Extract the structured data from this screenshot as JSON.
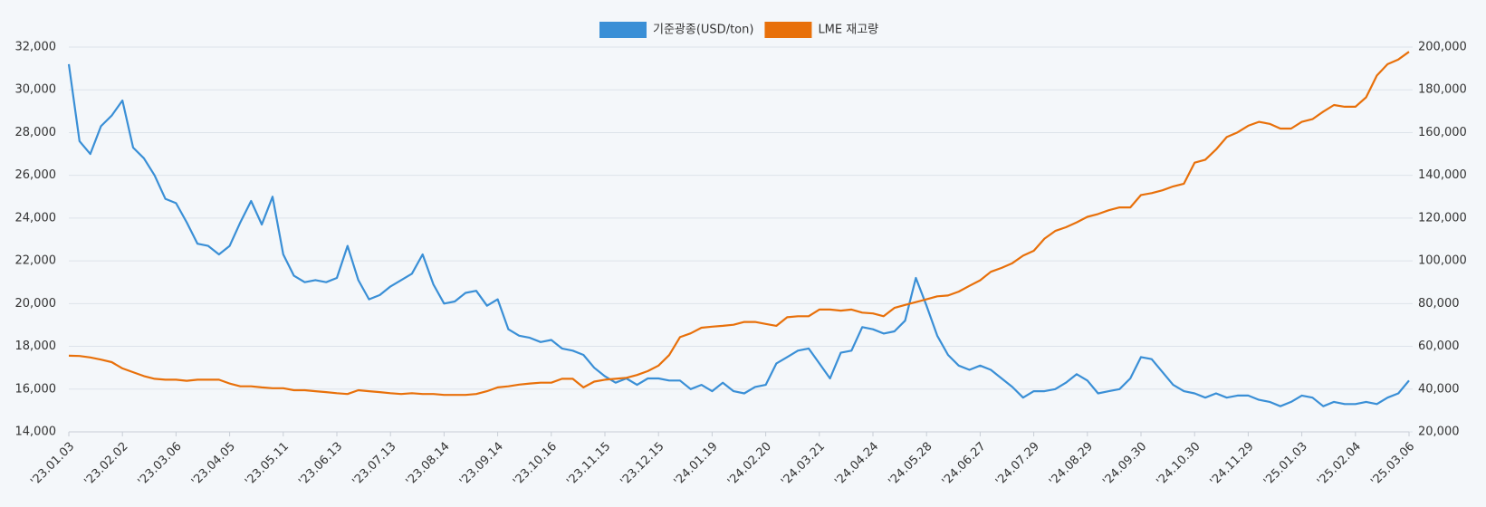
{
  "chart_data": {
    "type": "line",
    "categories": [
      "'23.01.03",
      null,
      null,
      null,
      null,
      "'23.02.02",
      null,
      null,
      null,
      null,
      "'23.03.06",
      null,
      null,
      null,
      null,
      "'23.04.05",
      null,
      null,
      null,
      null,
      "'23.05.11",
      null,
      null,
      null,
      null,
      "'23.06.13",
      null,
      null,
      null,
      null,
      "'23.07.13",
      null,
      null,
      null,
      null,
      "'23.08.14",
      null,
      null,
      null,
      null,
      "'23.09.14",
      null,
      null,
      null,
      null,
      "'23.10.16",
      null,
      null,
      null,
      null,
      "'23.11.15",
      null,
      null,
      null,
      null,
      "'23.12.15",
      null,
      null,
      null,
      null,
      "'24.01.19",
      null,
      null,
      null,
      null,
      "'24.02.20",
      null,
      null,
      null,
      null,
      "'24.03.21",
      null,
      null,
      null,
      null,
      "'24.04.24",
      null,
      null,
      null,
      null,
      "'24.05.28",
      null,
      null,
      null,
      null,
      "'24.06.27",
      null,
      null,
      null,
      null,
      "'24.07.29",
      null,
      null,
      null,
      null,
      "'24.08.29",
      null,
      null,
      null,
      null,
      "'24.09.30",
      null,
      null,
      null,
      null,
      "'24.10.30",
      null,
      null,
      null,
      null,
      "'24.11.29",
      null,
      null,
      null,
      null,
      "'25.01.03",
      null,
      null,
      null,
      null,
      "'25.02.04",
      null,
      null,
      null,
      null,
      "'25.03.06"
    ],
    "series": [
      {
        "name": "기준광종(USD/ton)",
        "color": "#3a8fd6",
        "axis": "y",
        "values": [
          31200,
          27600,
          27000,
          28300,
          28800,
          29500,
          27300,
          26800,
          26000,
          24900,
          24700,
          23800,
          22800,
          22700,
          22300,
          22700,
          23800,
          24800,
          23700,
          25000,
          22300,
          21300,
          21000,
          21100,
          21000,
          21200,
          22700,
          21100,
          20200,
          20400,
          20800,
          21100,
          21400,
          22300,
          20900,
          20000,
          20100,
          20500,
          20600,
          19900,
          20200,
          18800,
          18500,
          18400,
          18200,
          18300,
          17900,
          17800,
          17600,
          17000,
          16600,
          16300,
          16500,
          16200,
          16500,
          16500,
          16400,
          16400,
          16000,
          16200,
          15900,
          16300,
          15900,
          15800,
          16100,
          16200,
          17200,
          17500,
          17800,
          17900,
          17200,
          16500,
          17700,
          17800,
          18900,
          18800,
          18600,
          18700,
          19200,
          21200,
          19900,
          18500,
          17600,
          17100,
          16900,
          17100,
          16900,
          16500,
          16100,
          15600,
          15900,
          15900,
          16000,
          16300,
          16700,
          16400,
          15800,
          15900,
          16000,
          16500,
          17500,
          17400,
          16800,
          16200,
          15900,
          15800,
          15600,
          15800,
          15600,
          15700,
          15700,
          15500,
          15400,
          15200,
          15400,
          15700,
          15600,
          15200,
          15400,
          15300,
          15300,
          15400,
          15300,
          15600,
          15800,
          16400
        ]
      },
      {
        "name": "LME 재고량",
        "color": "#e8700a",
        "axis": "y2",
        "values": [
          55600,
          55500,
          54800,
          53800,
          52600,
          49700,
          47900,
          46100,
          44800,
          44400,
          44400,
          43900,
          44400,
          44400,
          44400,
          42600,
          41300,
          41300,
          40800,
          40400,
          40400,
          39500,
          39500,
          39000,
          38600,
          38100,
          37700,
          39500,
          39000,
          38600,
          38100,
          37700,
          38100,
          37700,
          37700,
          37300,
          37300,
          37300,
          37700,
          39000,
          40800,
          41300,
          42100,
          42600,
          43000,
          43000,
          44800,
          44800,
          40800,
          43500,
          44400,
          44800,
          45300,
          46600,
          48400,
          51000,
          55900,
          64300,
          66100,
          68700,
          69200,
          69600,
          70100,
          71400,
          71400,
          70500,
          69600,
          73600,
          74100,
          74100,
          77200,
          77200,
          76700,
          77200,
          75800,
          75400,
          74100,
          78000,
          79400,
          80700,
          82000,
          83400,
          83800,
          85600,
          88300,
          90900,
          94900,
          96700,
          98900,
          102400,
          104700,
          110400,
          114000,
          115700,
          118000,
          120600,
          121900,
          123700,
          125000,
          125000,
          130800,
          131700,
          133000,
          134800,
          136100,
          145900,
          147300,
          152100,
          157900,
          160100,
          163200,
          165000,
          164100,
          161900,
          161900,
          165000,
          166300,
          169800,
          172900,
          172100,
          172100,
          176500,
          186700,
          192000,
          194200,
          197800
        ]
      }
    ],
    "ylim": [
      14000,
      32000
    ],
    "yticks": [
      {
        "value": 14000,
        "label": "14,000"
      },
      {
        "value": 16000,
        "label": "16,000"
      },
      {
        "value": 18000,
        "label": "18,000"
      },
      {
        "value": 20000,
        "label": "20,000"
      },
      {
        "value": 22000,
        "label": "22,000"
      },
      {
        "value": 24000,
        "label": "24,000"
      },
      {
        "value": 26000,
        "label": "26,000"
      },
      {
        "value": 28000,
        "label": "28,000"
      },
      {
        "value": 30000,
        "label": "30,000"
      },
      {
        "value": 32000,
        "label": "32,000"
      }
    ],
    "y2lim": [
      20000,
      200000
    ],
    "y2ticks": [
      {
        "value": 20000,
        "label": "20,000"
      },
      {
        "value": 40000,
        "label": "40,000"
      },
      {
        "value": 60000,
        "label": "60,000"
      },
      {
        "value": 80000,
        "label": "80,000"
      },
      {
        "value": 100000,
        "label": "100,000"
      },
      {
        "value": 120000,
        "label": "120,000"
      },
      {
        "value": 140000,
        "label": "140,000"
      },
      {
        "value": 160000,
        "label": "160,000"
      },
      {
        "value": 180000,
        "label": "180,000"
      },
      {
        "value": 200000,
        "label": "200,000"
      }
    ],
    "grid": true,
    "legend": "top"
  }
}
